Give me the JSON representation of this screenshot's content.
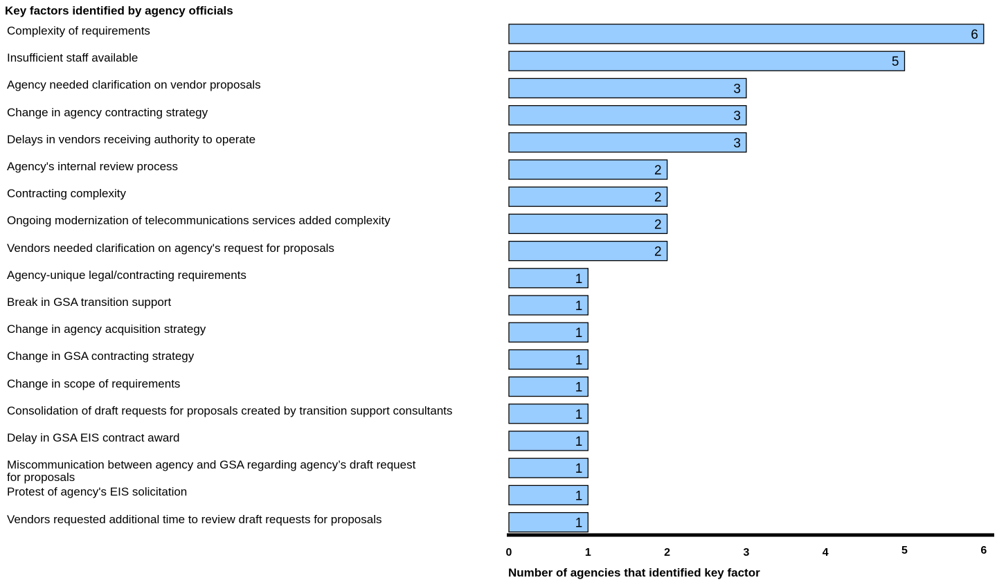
{
  "chart_data": {
    "type": "bar",
    "orientation": "horizontal",
    "title": "Key factors identified by agency officials",
    "xlabel": "Number of agencies that identified key factor",
    "ylabel": "",
    "xlim": [
      0,
      6
    ],
    "xticks": [
      0,
      1,
      2,
      3,
      4,
      5,
      6
    ],
    "grid": false,
    "bar_color": "#99ccff",
    "bar_edge_color": "#000000",
    "data_labels": true,
    "categories": [
      "Complexity of requirements",
      "Insufficient staff available",
      "Agency needed clarification on vendor proposals",
      "Change in agency contracting strategy",
      "Delays in vendors receiving authority to operate",
      "Agency's internal review process",
      "Contracting complexity",
      "Ongoing modernization of telecommunications services added complexity",
      "Vendors needed clarification on agency's request for proposals",
      "Agency-unique legal/contracting requirements",
      "Break in GSA transition support",
      "Change in agency acquisition strategy",
      "Change in GSA contracting strategy",
      "Change in scope of requirements",
      "Consolidation of draft requests for proposals created by transition support consultants",
      "Delay in GSA EIS contract award",
      "Miscommunication between agency and GSA regarding agency’s draft request\nfor proposals",
      "Protest of agency's EIS solicitation",
      "Vendors requested additional time to review draft requests for proposals"
    ],
    "values": [
      6,
      5,
      3,
      3,
      3,
      2,
      2,
      2,
      2,
      1,
      1,
      1,
      1,
      1,
      1,
      1,
      1,
      1,
      1
    ]
  }
}
